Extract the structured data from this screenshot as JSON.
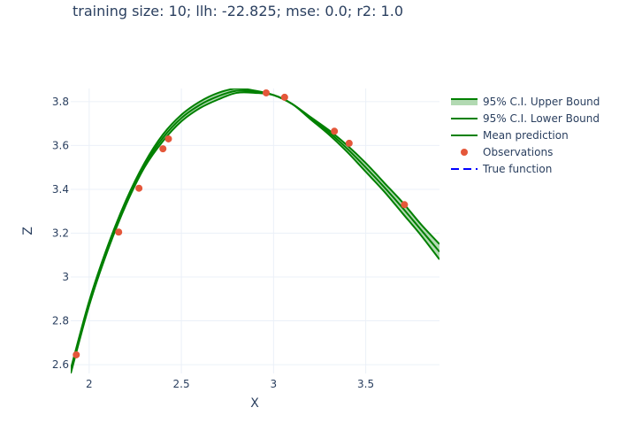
{
  "chart_data": {
    "type": "line",
    "title": "training size: 10; llh: -22.825; mse: 0.0; r2: 1.0",
    "xlabel": "X",
    "ylabel": "Z",
    "xlim": [
      1.9,
      3.9
    ],
    "ylim": [
      2.56,
      3.86
    ],
    "x_ticks": [
      2,
      2.5,
      3,
      3.5
    ],
    "x_tick_labels": [
      "2",
      "2.5",
      "3",
      "3.5"
    ],
    "y_ticks": [
      2.6,
      2.8,
      3,
      3.2,
      3.4,
      3.6,
      3.8
    ],
    "y_tick_labels": [
      "2.6",
      "2.8",
      "3",
      "3.2",
      "3.4",
      "3.6",
      "3.8"
    ],
    "grid": true,
    "legend_position": "top-right",
    "curve_x": [
      1.9,
      2.0,
      2.1,
      2.2,
      2.3,
      2.4,
      2.5,
      2.6,
      2.7,
      2.8,
      2.9,
      3.0,
      3.1,
      3.2,
      3.3,
      3.4,
      3.5,
      3.6,
      3.7,
      3.8,
      3.9
    ],
    "series": [
      {
        "name": "95% C.I. Upper Bound",
        "color": "#008000",
        "fill": "rgba(0,128,0,0.3)",
        "values": [
          2.58,
          2.89,
          3.14,
          3.35,
          3.52,
          3.65,
          3.74,
          3.8,
          3.84,
          3.86,
          3.85,
          3.83,
          3.79,
          3.73,
          3.67,
          3.6,
          3.52,
          3.43,
          3.34,
          3.24,
          3.15
        ]
      },
      {
        "name": "95% C.I. Lower Bound",
        "color": "#008000",
        "values": [
          2.56,
          2.87,
          3.12,
          3.33,
          3.5,
          3.62,
          3.71,
          3.77,
          3.81,
          3.84,
          3.84,
          3.83,
          3.79,
          3.72,
          3.65,
          3.57,
          3.48,
          3.39,
          3.29,
          3.19,
          3.08
        ]
      },
      {
        "name": "Mean prediction",
        "color": "#008000",
        "values": [
          2.57,
          2.88,
          3.13,
          3.34,
          3.51,
          3.635,
          3.725,
          3.785,
          3.825,
          3.85,
          3.845,
          3.83,
          3.79,
          3.725,
          3.66,
          3.585,
          3.5,
          3.41,
          3.315,
          3.215,
          3.115
        ]
      }
    ],
    "observations": {
      "name": "Observations",
      "color": "#e4573a",
      "x": [
        1.93,
        2.16,
        2.27,
        2.4,
        2.43,
        2.96,
        3.06,
        3.33,
        3.41,
        3.71
      ],
      "y": [
        2.645,
        3.205,
        3.405,
        3.585,
        3.63,
        3.84,
        3.82,
        3.665,
        3.61,
        3.33
      ]
    },
    "true_function": {
      "name": "True function",
      "color": "#0000ff",
      "dash": "dashed"
    }
  }
}
